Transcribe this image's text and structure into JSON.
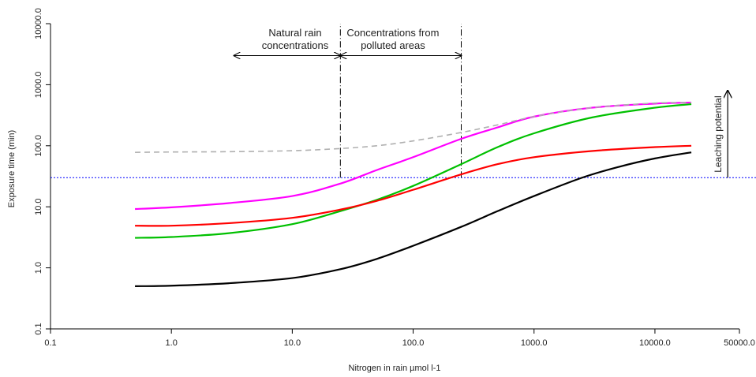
{
  "chart_data": {
    "type": "line",
    "xlabel": "Nitrogen in rain µmol l-1",
    "ylabel": "Exposure time (min)",
    "x_scale": "log",
    "y_scale": "log",
    "xlim": [
      0.1,
      50000
    ],
    "ylim": [
      0.1,
      10000
    ],
    "x_ticks": [
      0.1,
      1,
      10,
      100,
      1000,
      10000,
      50000
    ],
    "x_tick_labels": [
      "0.1",
      "1.0",
      "10.0",
      "100.0",
      "1000.0",
      "10000.0",
      "50000.0"
    ],
    "y_ticks": [
      0.1,
      1,
      10,
      100,
      1000,
      10000
    ],
    "y_tick_labels": [
      "0.1",
      "1.0",
      "10.0",
      "100.0",
      "1000.0",
      "10000.0"
    ],
    "grid": false,
    "legend": "none",
    "series": [
      {
        "color": "#ff00ff",
        "dash": "solid",
        "points": [
          [
            0.5,
            9.2
          ],
          [
            1,
            9.8
          ],
          [
            3,
            11.5
          ],
          [
            10,
            15
          ],
          [
            25,
            24
          ],
          [
            50,
            40
          ],
          [
            100,
            65
          ],
          [
            250,
            130
          ],
          [
            500,
            200
          ],
          [
            1000,
            300
          ],
          [
            3000,
            420
          ],
          [
            10000,
            490
          ],
          [
            20000,
            510
          ]
        ]
      },
      {
        "color": "#00c000",
        "dash": "solid",
        "points": [
          [
            0.5,
            3.1
          ],
          [
            1,
            3.2
          ],
          [
            3,
            3.7
          ],
          [
            10,
            5.2
          ],
          [
            25,
            8.5
          ],
          [
            50,
            13
          ],
          [
            100,
            22
          ],
          [
            250,
            50
          ],
          [
            500,
            95
          ],
          [
            1000,
            160
          ],
          [
            3000,
            290
          ],
          [
            10000,
            420
          ],
          [
            20000,
            480
          ]
        ]
      },
      {
        "color": "#ff0000",
        "dash": "solid",
        "points": [
          [
            0.5,
            4.9
          ],
          [
            1,
            4.9
          ],
          [
            3,
            5.4
          ],
          [
            10,
            6.6
          ],
          [
            25,
            9
          ],
          [
            50,
            12.5
          ],
          [
            100,
            19
          ],
          [
            250,
            34
          ],
          [
            500,
            50
          ],
          [
            1000,
            65
          ],
          [
            3000,
            82
          ],
          [
            10000,
            95
          ],
          [
            20000,
            100
          ]
        ]
      },
      {
        "color": "#000000",
        "dash": "solid",
        "points": [
          [
            0.5,
            0.5
          ],
          [
            1,
            0.51
          ],
          [
            3,
            0.56
          ],
          [
            10,
            0.68
          ],
          [
            25,
            0.95
          ],
          [
            50,
            1.4
          ],
          [
            100,
            2.3
          ],
          [
            250,
            4.7
          ],
          [
            500,
            8.5
          ],
          [
            1000,
            15
          ],
          [
            2500,
            30
          ],
          [
            5000,
            45
          ],
          [
            10000,
            62
          ],
          [
            20000,
            78
          ]
        ]
      },
      {
        "color": "#b0b0b0",
        "dash": "dashed",
        "points": [
          [
            0.5,
            78
          ],
          [
            1,
            79
          ],
          [
            3,
            80
          ],
          [
            10,
            83
          ],
          [
            25,
            90
          ],
          [
            50,
            100
          ],
          [
            100,
            120
          ],
          [
            250,
            165
          ],
          [
            500,
            220
          ],
          [
            1000,
            300
          ],
          [
            3000,
            420
          ],
          [
            10000,
            500
          ],
          [
            20000,
            510
          ]
        ]
      }
    ],
    "reference_lines": [
      {
        "orientation": "horizontal",
        "y": 30,
        "color": "#0000ff",
        "style": "dotted"
      },
      {
        "orientation": "vertical",
        "x": 25,
        "y_from": 30,
        "y_to": 10000,
        "color": "#000000",
        "style": "dashdot"
      },
      {
        "orientation": "vertical",
        "x": 250,
        "y_from": 30,
        "y_to": 10000,
        "color": "#000000",
        "style": "dashdot"
      }
    ],
    "annotations": [
      {
        "id": "natural",
        "lines": [
          "Natural rain",
          "concentrations"
        ],
        "arrow_x": [
          3.3,
          25
        ],
        "arrow_y": 3000
      },
      {
        "id": "polluted",
        "lines": [
          "Concentrations from",
          "polluted areas"
        ],
        "arrow_x": [
          25,
          250
        ],
        "arrow_y": 3000
      },
      {
        "id": "leaching",
        "text": "Leaching potential",
        "arrow_x": 40000,
        "arrow_y": [
          30,
          800
        ]
      }
    ]
  }
}
